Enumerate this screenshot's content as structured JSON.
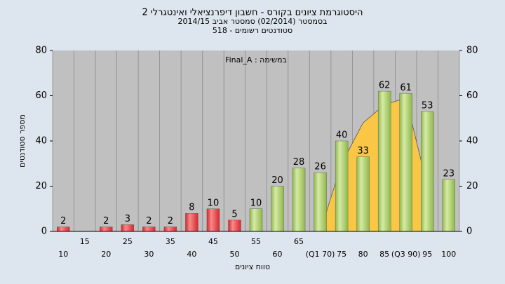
{
  "chart_data": {
    "type": "bar",
    "title": "היסטוגרמת ציונים בקורס - חשבון דיפרנציאלי ואינטגרלי 2",
    "subtitle": "בסמסטר  (02/2014)  סמסטר אביב 2014/15",
    "subtitle2": "סטודנטים רשומים - 518",
    "annotation": "Final_A : במשימה",
    "x_label": "טווח ציונים",
    "y_label": "מספר סטודנטים",
    "categories": [
      "10",
      "15",
      "20",
      "25",
      "30",
      "35",
      "40",
      "45",
      "50",
      "55",
      "60",
      "65",
      "(Q1 70)",
      "75",
      "80",
      "85",
      "(Q3 90)",
      "95",
      "100"
    ],
    "values": [
      2,
      null,
      2,
      3,
      2,
      2,
      8,
      10,
      5,
      10,
      20,
      28,
      26,
      40,
      33,
      62,
      61,
      53,
      23
    ],
    "colors": [
      "#d9262b",
      "#d9262b",
      "#d9262b",
      "#d9262b",
      "#d9262b",
      "#d9262b",
      "#d9262b",
      "#d9262b",
      "#d9262b",
      "#8fb84a",
      "#8fb84a",
      "#8fb84a",
      "#8fb84a",
      "#8fb84a",
      "#8fb84a",
      "#8fb84a",
      "#8fb84a",
      "#8fb84a",
      "#8fb84a"
    ],
    "curve": {
      "color": "#f9c646",
      "values": [
        null,
        null,
        null,
        null,
        null,
        null,
        null,
        null,
        null,
        null,
        null,
        null,
        0,
        30,
        48,
        56,
        59,
        20,
        null
      ]
    },
    "ylim": [
      0,
      80
    ],
    "yticks": [
      0,
      20,
      40,
      60,
      80
    ],
    "y2lim": [
      0,
      80
    ],
    "y2ticks": [
      0,
      20,
      40,
      60,
      80
    ],
    "grid": true
  }
}
